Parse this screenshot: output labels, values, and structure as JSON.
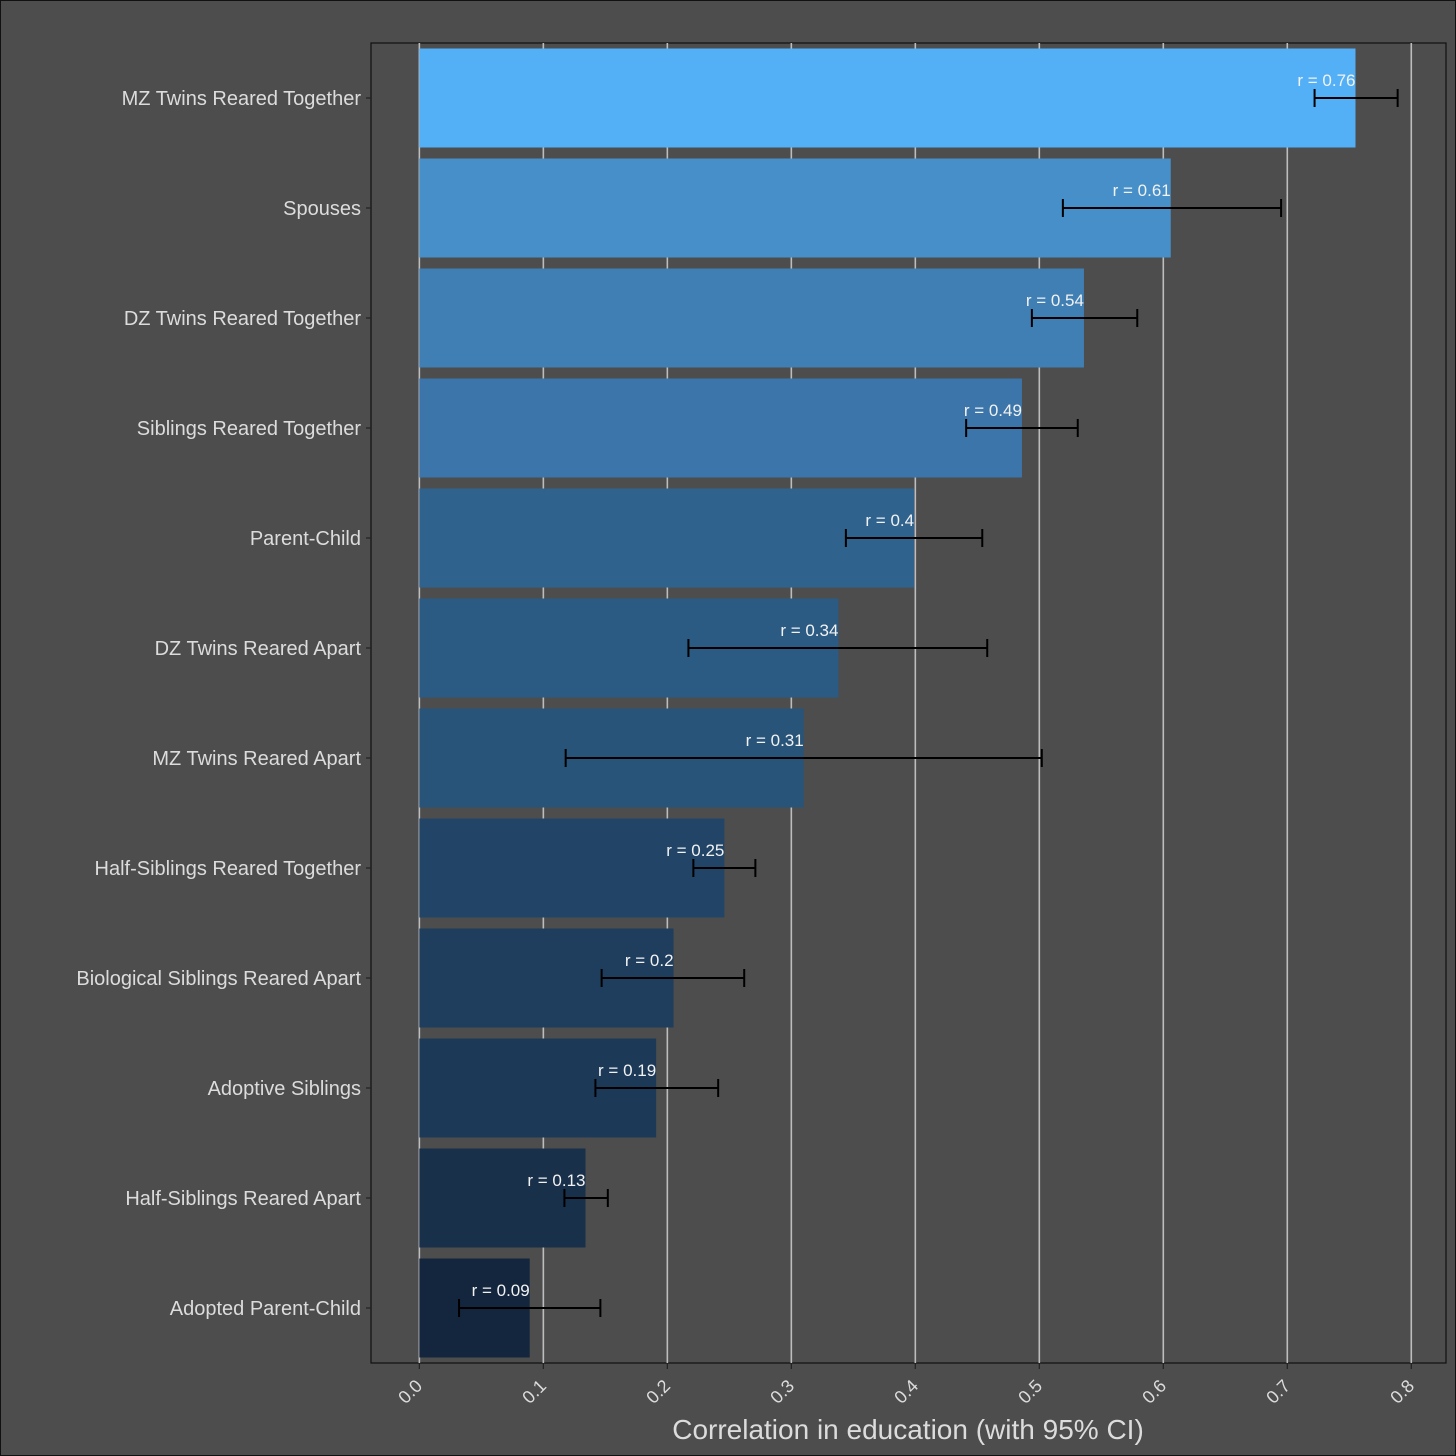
{
  "chart_data": {
    "type": "bar",
    "orientation": "horizontal",
    "categories": [
      "MZ Twins Reared Together",
      "Spouses",
      "DZ Twins Reared Together",
      "Siblings Reared Together",
      "Parent-Child",
      "DZ Twins Reared Apart",
      "MZ Twins Reared Apart",
      "Half-Siblings Reared Together",
      "Biological Siblings Reared Apart",
      "Adoptive Siblings",
      "Half-Siblings Reared Apart",
      "Adopted Parent-Child"
    ],
    "values": [
      0.755,
      0.606,
      0.536,
      0.486,
      0.399,
      0.338,
      0.31,
      0.246,
      0.205,
      0.191,
      0.134,
      0.089
    ],
    "ci_low": [
      0.722,
      0.519,
      0.494,
      0.441,
      0.344,
      0.217,
      0.118,
      0.221,
      0.147,
      0.142,
      0.117,
      0.032
    ],
    "ci_high": [
      0.789,
      0.695,
      0.579,
      0.531,
      0.454,
      0.458,
      0.502,
      0.271,
      0.262,
      0.241,
      0.152,
      0.146
    ],
    "labels": [
      "r = 0.76",
      "r = 0.61",
      "r = 0.54",
      "r = 0.49",
      "r = 0.4",
      "r = 0.34",
      "r = 0.31",
      "r = 0.25",
      "r = 0.2",
      "r = 0.19",
      "r = 0.13",
      "r = 0.09"
    ],
    "colors": [
      "#53b0f6",
      "#468fc8",
      "#3f7fb4",
      "#3b75a9",
      "#30628e",
      "#2b5a83",
      "#285479",
      "#224567",
      "#1f3d5c",
      "#1c3a58",
      "#18304a",
      "#14263d"
    ],
    "xlabel": "Correlation in education (with 95% CI)",
    "ylabel": "",
    "xlim": [
      -0.039,
      0.828
    ],
    "xticks": [
      0.0,
      0.1,
      0.2,
      0.3,
      0.4,
      0.5,
      0.6,
      0.7,
      0.8
    ],
    "xtick_labels": [
      "0.0",
      "0.1",
      "0.2",
      "0.3",
      "0.4",
      "0.5",
      "0.6",
      "0.7",
      "0.8"
    ],
    "grid": true
  }
}
